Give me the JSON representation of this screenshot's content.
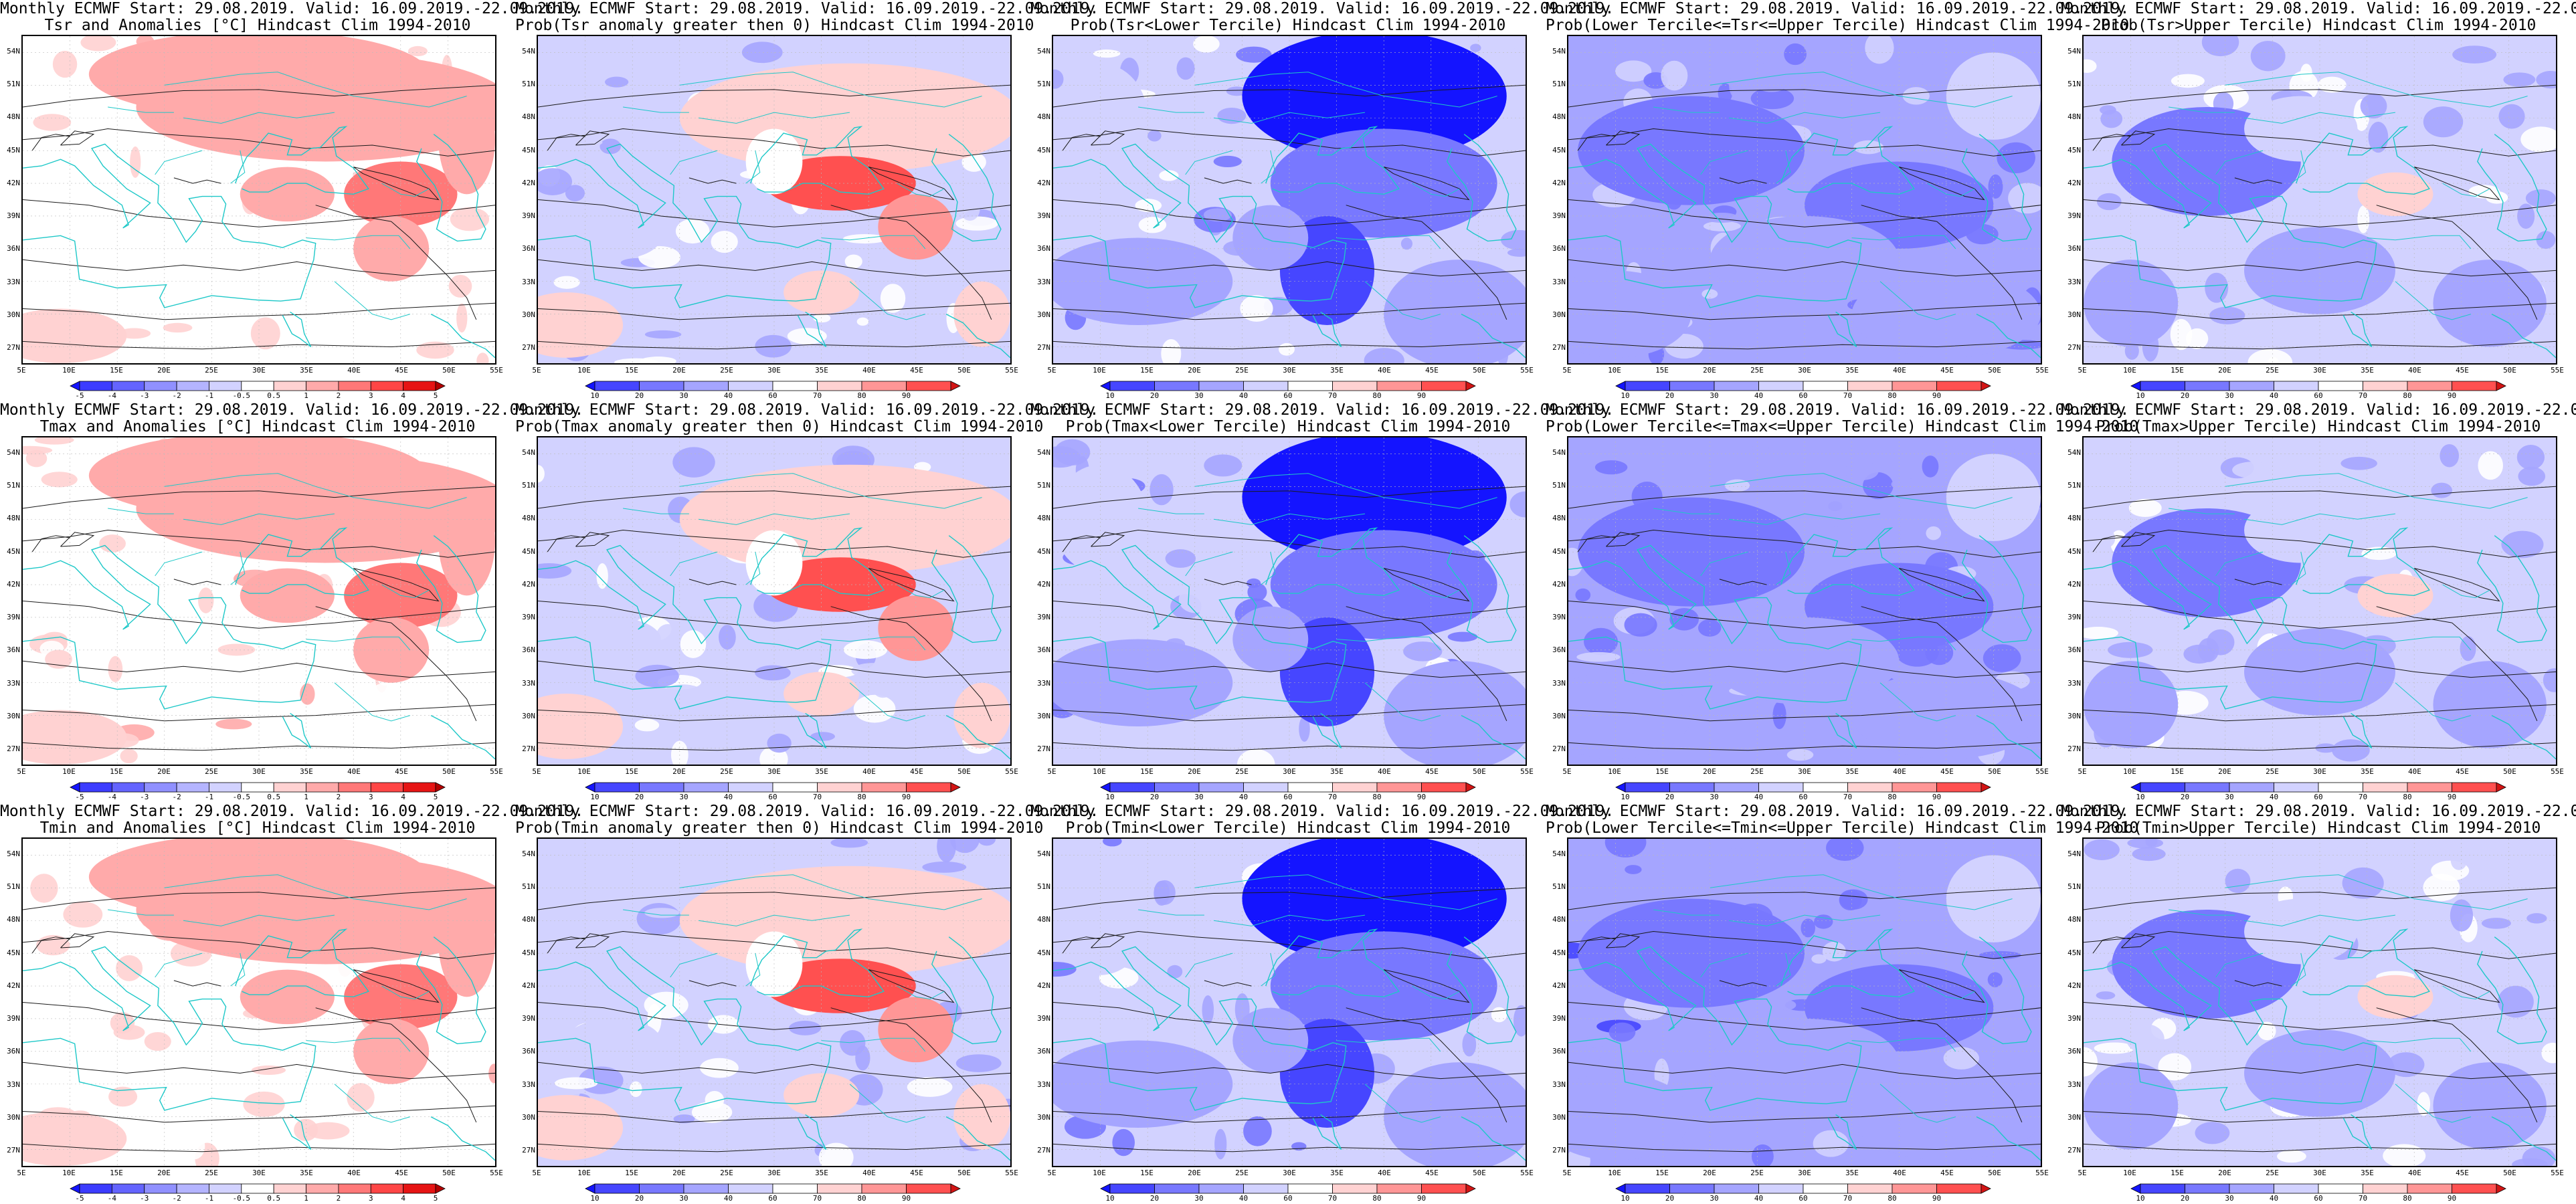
{
  "figure": {
    "header": "Monthly ECMWF Start: 29.08.2019. Valid: 16.09.2019.-22.09.2019.",
    "x_ticks": [
      "5E",
      "10E",
      "15E",
      "20E",
      "25E",
      "30E",
      "35E",
      "40E",
      "45E",
      "50E",
      "55E"
    ],
    "y_ticks": [
      "54N",
      "51N",
      "48N",
      "45N",
      "42N",
      "39N",
      "36N",
      "33N",
      "30N",
      "27N"
    ],
    "colorbars": {
      "anomaly": {
        "labels": [
          "-5",
          "-4",
          "-3",
          "-2",
          "-1",
          "-0.5",
          "0.5",
          "1",
          "2",
          "3",
          "4",
          "5"
        ],
        "colors": [
          "#1414ff",
          "#3c3cff",
          "#6464ff",
          "#9090ff",
          "#b4b4ff",
          "#d2d2ff",
          "#ffffff",
          "#ffd2d2",
          "#ffaaaa",
          "#ff7878",
          "#ff4646",
          "#e61414",
          "#b40000"
        ]
      },
      "probability": {
        "labels": [
          "10",
          "20",
          "30",
          "40",
          "60",
          "70",
          "80",
          "90"
        ],
        "colors": [
          "#1414ff",
          "#4646ff",
          "#7878ff",
          "#a5a5ff",
          "#d2d2ff",
          "#ffffff",
          "#ffd2d2",
          "#ff9696",
          "#ff5050",
          "#d21414"
        ]
      }
    }
  },
  "panels": [
    {
      "subtitle": "Tsr and Anomalies [°C] Hindcast Clim 1994-2010",
      "kind": "anom",
      "scale": "anomaly"
    },
    {
      "subtitle": "Prob(Tsr anomaly greater then 0) Hindcast Clim 1994-2010",
      "kind": "probpos",
      "scale": "probability"
    },
    {
      "subtitle": "Prob(Tsr<Lower Tercile) Hindcast Clim 1994-2010",
      "kind": "lower",
      "scale": "probability"
    },
    {
      "subtitle": "Prob(Lower Tercile<=Tsr<=Upper Tercile) Hindcast Clim 1994-2010",
      "kind": "middle",
      "scale": "probability"
    },
    {
      "subtitle": "Prob(Tsr>Upper Tercile) Hindcast Clim 1994-2010",
      "kind": "upper",
      "scale": "probability"
    },
    {
      "subtitle": "Tmax and Anomalies [°C] Hindcast Clim 1994-2010",
      "kind": "anom",
      "scale": "anomaly"
    },
    {
      "subtitle": "Prob(Tmax anomaly greater then 0) Hindcast Clim 1994-2010",
      "kind": "probpos",
      "scale": "probability"
    },
    {
      "subtitle": "Prob(Tmax<Lower Tercile) Hindcast Clim 1994-2010",
      "kind": "lower",
      "scale": "probability"
    },
    {
      "subtitle": "Prob(Lower Tercile<=Tmax<=Upper Tercile) Hindcast Clim 1994-2010",
      "kind": "middle",
      "scale": "probability"
    },
    {
      "subtitle": "Prob(Tmax>Upper Tercile) Hindcast Clim 1994-2010",
      "kind": "upper",
      "scale": "probability"
    },
    {
      "subtitle": "Tmin and Anomalies [°C] Hindcast Clim 1994-2010",
      "kind": "anom",
      "scale": "anomaly"
    },
    {
      "subtitle": "Prob(Tmin anomaly greater then 0) Hindcast Clim 1994-2010",
      "kind": "probpos",
      "scale": "probability"
    },
    {
      "subtitle": "Prob(Tmin<Lower Tercile) Hindcast Clim 1994-2010",
      "kind": "lower",
      "scale": "probability"
    },
    {
      "subtitle": "Prob(Lower Tercile<=Tmin<=Upper Tercile) Hindcast Clim 1994-2010",
      "kind": "middle",
      "scale": "probability"
    },
    {
      "subtitle": "Prob(Tmin>Upper Tercile) Hindcast Clim 1994-2010",
      "kind": "upper",
      "scale": "probability"
    }
  ],
  "chart_data": {
    "type": "heatmap",
    "layout": "3 rows (Tsr, Tmax, Tmin) x 5 columns",
    "xlim": [
      5,
      55
    ],
    "ylim": [
      25.5,
      55.5
    ],
    "x_unit": "°E",
    "y_unit": "°N",
    "overlay": "black isotherm contours with cyan coastlines/borders",
    "features_by_kind": {
      "anom": [
        {
          "lon": 37,
          "lat": 49,
          "rx": 20,
          "ry": 5,
          "value": 1.5
        },
        {
          "lon": 30,
          "lat": 52,
          "rx": 18,
          "ry": 4,
          "value": 1.2
        },
        {
          "lon": 45,
          "lat": 41,
          "rx": 6,
          "ry": 3,
          "value": 2
        },
        {
          "lon": 33,
          "lat": 41,
          "rx": 5,
          "ry": 2.5,
          "value": 1.2
        },
        {
          "lon": 44,
          "lat": 36,
          "rx": 4,
          "ry": 3,
          "value": 1.2
        },
        {
          "lon": 9,
          "lat": 28,
          "rx": 7,
          "ry": 2.5,
          "value": 0.8
        },
        {
          "lon": 52,
          "lat": 46,
          "rx": 3,
          "ry": 5,
          "value": 1.2
        }
      ],
      "probpos": [
        {
          "lon": 38,
          "lat": 48,
          "rx": 18,
          "ry": 5,
          "value": 62
        },
        {
          "lon": 37,
          "lat": 42,
          "rx": 8,
          "ry": 2.5,
          "value": 82
        },
        {
          "lon": 45,
          "lat": 38,
          "rx": 4,
          "ry": 3,
          "value": 78
        },
        {
          "lon": 30,
          "lat": 44,
          "rx": 3,
          "ry": 3,
          "value": 50
        },
        {
          "lon": 8,
          "lat": 29,
          "rx": 6,
          "ry": 3,
          "value": 62
        },
        {
          "lon": 35,
          "lat": 32,
          "rx": 4,
          "ry": 2,
          "value": 62
        },
        {
          "lon": 13,
          "lat": 37,
          "rx": 5,
          "ry": 2,
          "value": 42
        },
        {
          "lon": 52,
          "lat": 30,
          "rx": 3,
          "ry": 3,
          "value": 62
        }
      ],
      "lower": [
        {
          "lon": 39,
          "lat": 50,
          "rx": 14,
          "ry": 6,
          "value": 8
        },
        {
          "lon": 40,
          "lat": 42,
          "rx": 12,
          "ry": 5,
          "value": 22
        },
        {
          "lon": 34,
          "lat": 34,
          "rx": 5,
          "ry": 5,
          "value": 12
        },
        {
          "lon": 14,
          "lat": 33,
          "rx": 10,
          "ry": 4,
          "value": 35
        },
        {
          "lon": 48,
          "lat": 30,
          "rx": 8,
          "ry": 5,
          "value": 32
        },
        {
          "lon": 10,
          "lat": 48,
          "rx": 5,
          "ry": 5,
          "value": 45
        },
        {
          "lon": 28,
          "lat": 37,
          "rx": 4,
          "ry": 3,
          "value": 38
        }
      ],
      "middle": [
        {
          "lon": 18,
          "lat": 45,
          "rx": 12,
          "ry": 5,
          "value": 22
        },
        {
          "lon": 40,
          "lat": 40,
          "rx": 10,
          "ry": 4,
          "value": 25
        },
        {
          "lon": 30,
          "lat": 35,
          "rx": 10,
          "ry": 4,
          "value": 35
        },
        {
          "lon": 45,
          "lat": 30,
          "rx": 10,
          "ry": 4,
          "value": 30
        },
        {
          "lon": 10,
          "lat": 30,
          "rx": 8,
          "ry": 4,
          "value": 38
        },
        {
          "lon": 50,
          "lat": 50,
          "rx": 5,
          "ry": 4,
          "value": 42
        }
      ],
      "upper": [
        {
          "lon": 18,
          "lat": 44,
          "rx": 10,
          "ry": 5,
          "value": 25
        },
        {
          "lon": 38,
          "lat": 41,
          "rx": 4,
          "ry": 2,
          "value": 62
        },
        {
          "lon": 30,
          "lat": 34,
          "rx": 8,
          "ry": 4,
          "value": 35
        },
        {
          "lon": 48,
          "lat": 31,
          "rx": 6,
          "ry": 4,
          "value": 32
        },
        {
          "lon": 28,
          "lat": 47,
          "rx": 6,
          "ry": 3,
          "value": 42
        },
        {
          "lon": 10,
          "lat": 31,
          "rx": 5,
          "ry": 4,
          "value": 35
        }
      ]
    },
    "background_by_kind": {
      "anom": 0,
      "probpos": 45,
      "lower": 40,
      "middle": 33,
      "upper": 45
    }
  }
}
